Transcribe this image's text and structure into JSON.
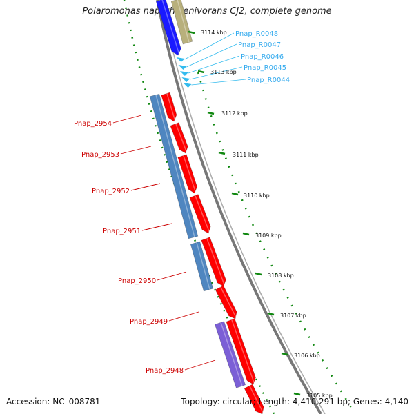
{
  "title": "Polaromonas naphthalenivorans CJ2, complete genome",
  "footer": {
    "accession": "Accession: NC_008781",
    "topology": "Topology: circular; Length: 4,410,291 bp; Genes: 4,140"
  },
  "colors": {
    "cds_forward": "#ff0000",
    "gene_blue": "#4f86c0",
    "gene_purple": "#7b5fd6",
    "top_blue": "#1a1aff",
    "top_khaki": "#b8b07c",
    "trna": "#33bbee",
    "gene_label": "#cc0000",
    "trna_label": "#33aaee",
    "ticks": "#118811",
    "backbone": "#777777"
  },
  "gene_labels": [
    "Pnap_2954",
    "Pnap_2953",
    "Pnap_2952",
    "Pnap_2951",
    "Pnap_2950",
    "Pnap_2949",
    "Pnap_2948"
  ],
  "trna_labels": [
    "Pnap_R0048",
    "Pnap_R0047",
    "Pnap_R0046",
    "Pnap_R0045",
    "Pnap_R0044"
  ],
  "ticks": [
    "3114 kbp",
    "3113 kbp",
    "3112 kbp",
    "3111 kbp",
    "3110 kbp",
    "3109 kbp",
    "3108 kbp",
    "3107 kbp",
    "3106 kbp",
    "3105 kbp"
  ]
}
